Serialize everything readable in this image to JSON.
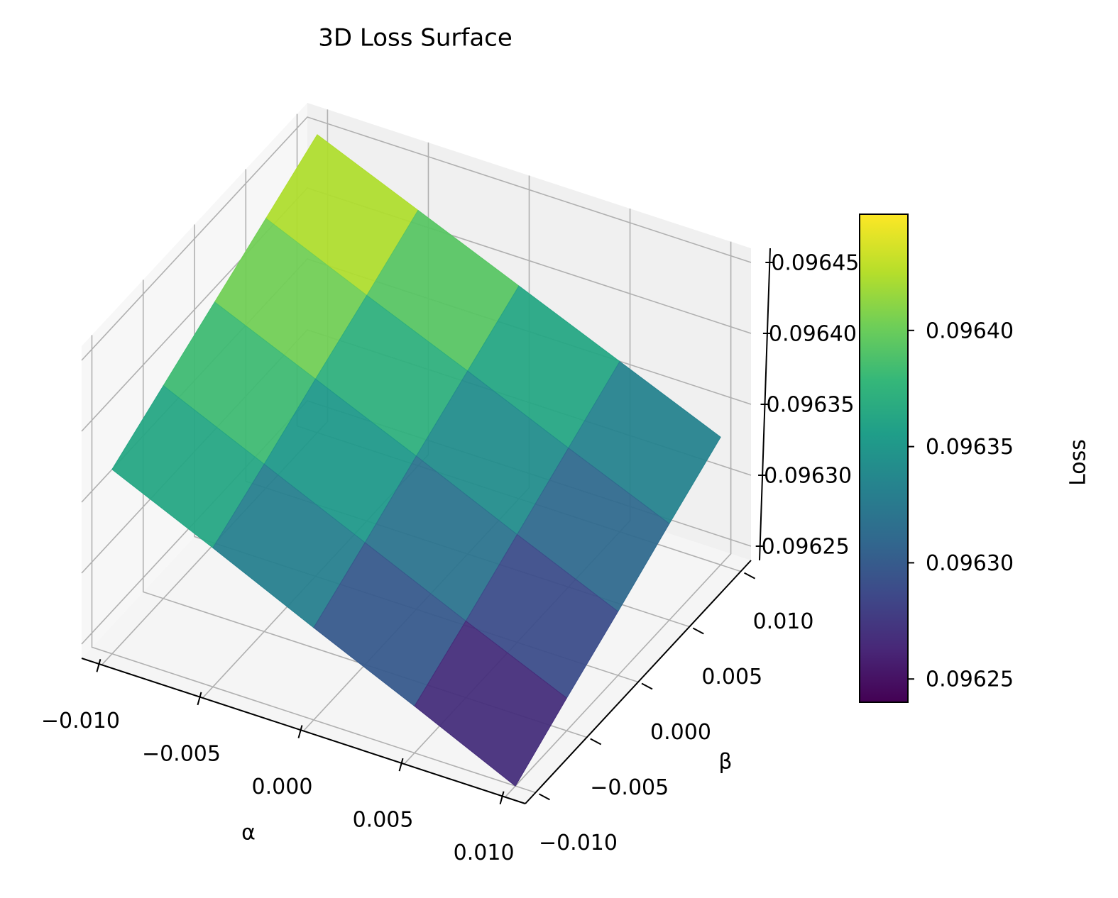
{
  "chart_data": {
    "type": "surface",
    "title": "3D Loss Surface",
    "xlabel": "α",
    "ylabel": "β",
    "zlabel": "Loss",
    "colorbar_label": "Loss",
    "colormap": "viridis",
    "x": [
      -0.01,
      -0.005,
      0,
      0.005,
      0.01
    ],
    "y": [
      -0.01,
      -0.005,
      0,
      0.005,
      0.01
    ],
    "z": [
      [
        0.09637,
        0.096338,
        0.096305,
        0.096273,
        0.09624
      ],
      [
        0.09639,
        0.096358,
        0.096326,
        0.096294,
        0.096263
      ],
      [
        0.09641,
        0.096379,
        0.096348,
        0.096316,
        0.096285
      ],
      [
        0.09643,
        0.096399,
        0.096369,
        0.096338,
        0.096308
      ],
      [
        0.09645,
        0.09642,
        0.09639,
        0.09636,
        0.09633
      ]
    ],
    "xlim": [
      -0.011,
      0.011
    ],
    "ylim": [
      -0.011,
      0.011
    ],
    "zlim": [
      0.09624,
      0.09646
    ],
    "xticks": [
      {
        "value": -0.01,
        "label": "−0.010"
      },
      {
        "value": -0.005,
        "label": "−0.005"
      },
      {
        "value": 0,
        "label": "0.000"
      },
      {
        "value": 0.005,
        "label": "0.005"
      },
      {
        "value": 0.01,
        "label": "0.010"
      }
    ],
    "yticks": [
      {
        "value": -0.01,
        "label": "−0.010"
      },
      {
        "value": -0.005,
        "label": "−0.005"
      },
      {
        "value": 0,
        "label": "0.000"
      },
      {
        "value": 0.005,
        "label": "0.005"
      },
      {
        "value": 0.01,
        "label": "0.010"
      }
    ],
    "zticks": [
      0.09625,
      {
        "value": 0.0963,
        "label": "0.09630"
      },
      0.09635,
      {
        "value": 0.0964,
        "label": "0.09640"
      },
      0.09645
    ],
    "cbar_ticks": [
      0.09625,
      {
        "value": 0.0963,
        "label": "0.09630"
      },
      0.09635,
      {
        "value": 0.0964,
        "label": "0.09640"
      }
    ],
    "grid": true
  }
}
